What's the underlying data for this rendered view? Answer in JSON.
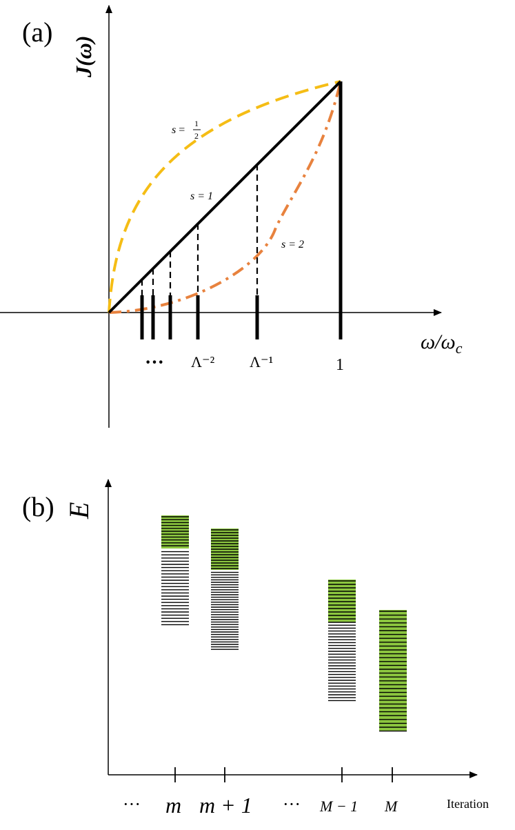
{
  "panel_a": {
    "label": "(a)",
    "y_axis_label": "J(ω)",
    "x_axis_label": "ω/ωc",
    "ticks": {
      "ellipsis": "···",
      "lambda_m2": "Λ⁻²",
      "lambda_m1": "Λ⁻¹",
      "one": "1"
    },
    "curve_labels": {
      "s_half_prefix": "s =",
      "s_half_num": "1",
      "s_half_den": "2",
      "s_one": "s = 1",
      "s_two": "s = 2"
    },
    "colors": {
      "s_half": "#f5bd15",
      "s_one": "#000000",
      "s_two": "#e8823e"
    }
  },
  "panel_b": {
    "label": "(b)",
    "y_axis_label": "E",
    "x_axis_title": "Iteration",
    "ticks": {
      "ellipsis_left": "···",
      "m": "m",
      "m_plus_1": "m + 1",
      "ellipsis_mid": "···",
      "M_minus_1": "M − 1",
      "M": "M"
    },
    "colors": {
      "kept_block": "#8cc63f",
      "level_line": "#000000"
    }
  }
}
